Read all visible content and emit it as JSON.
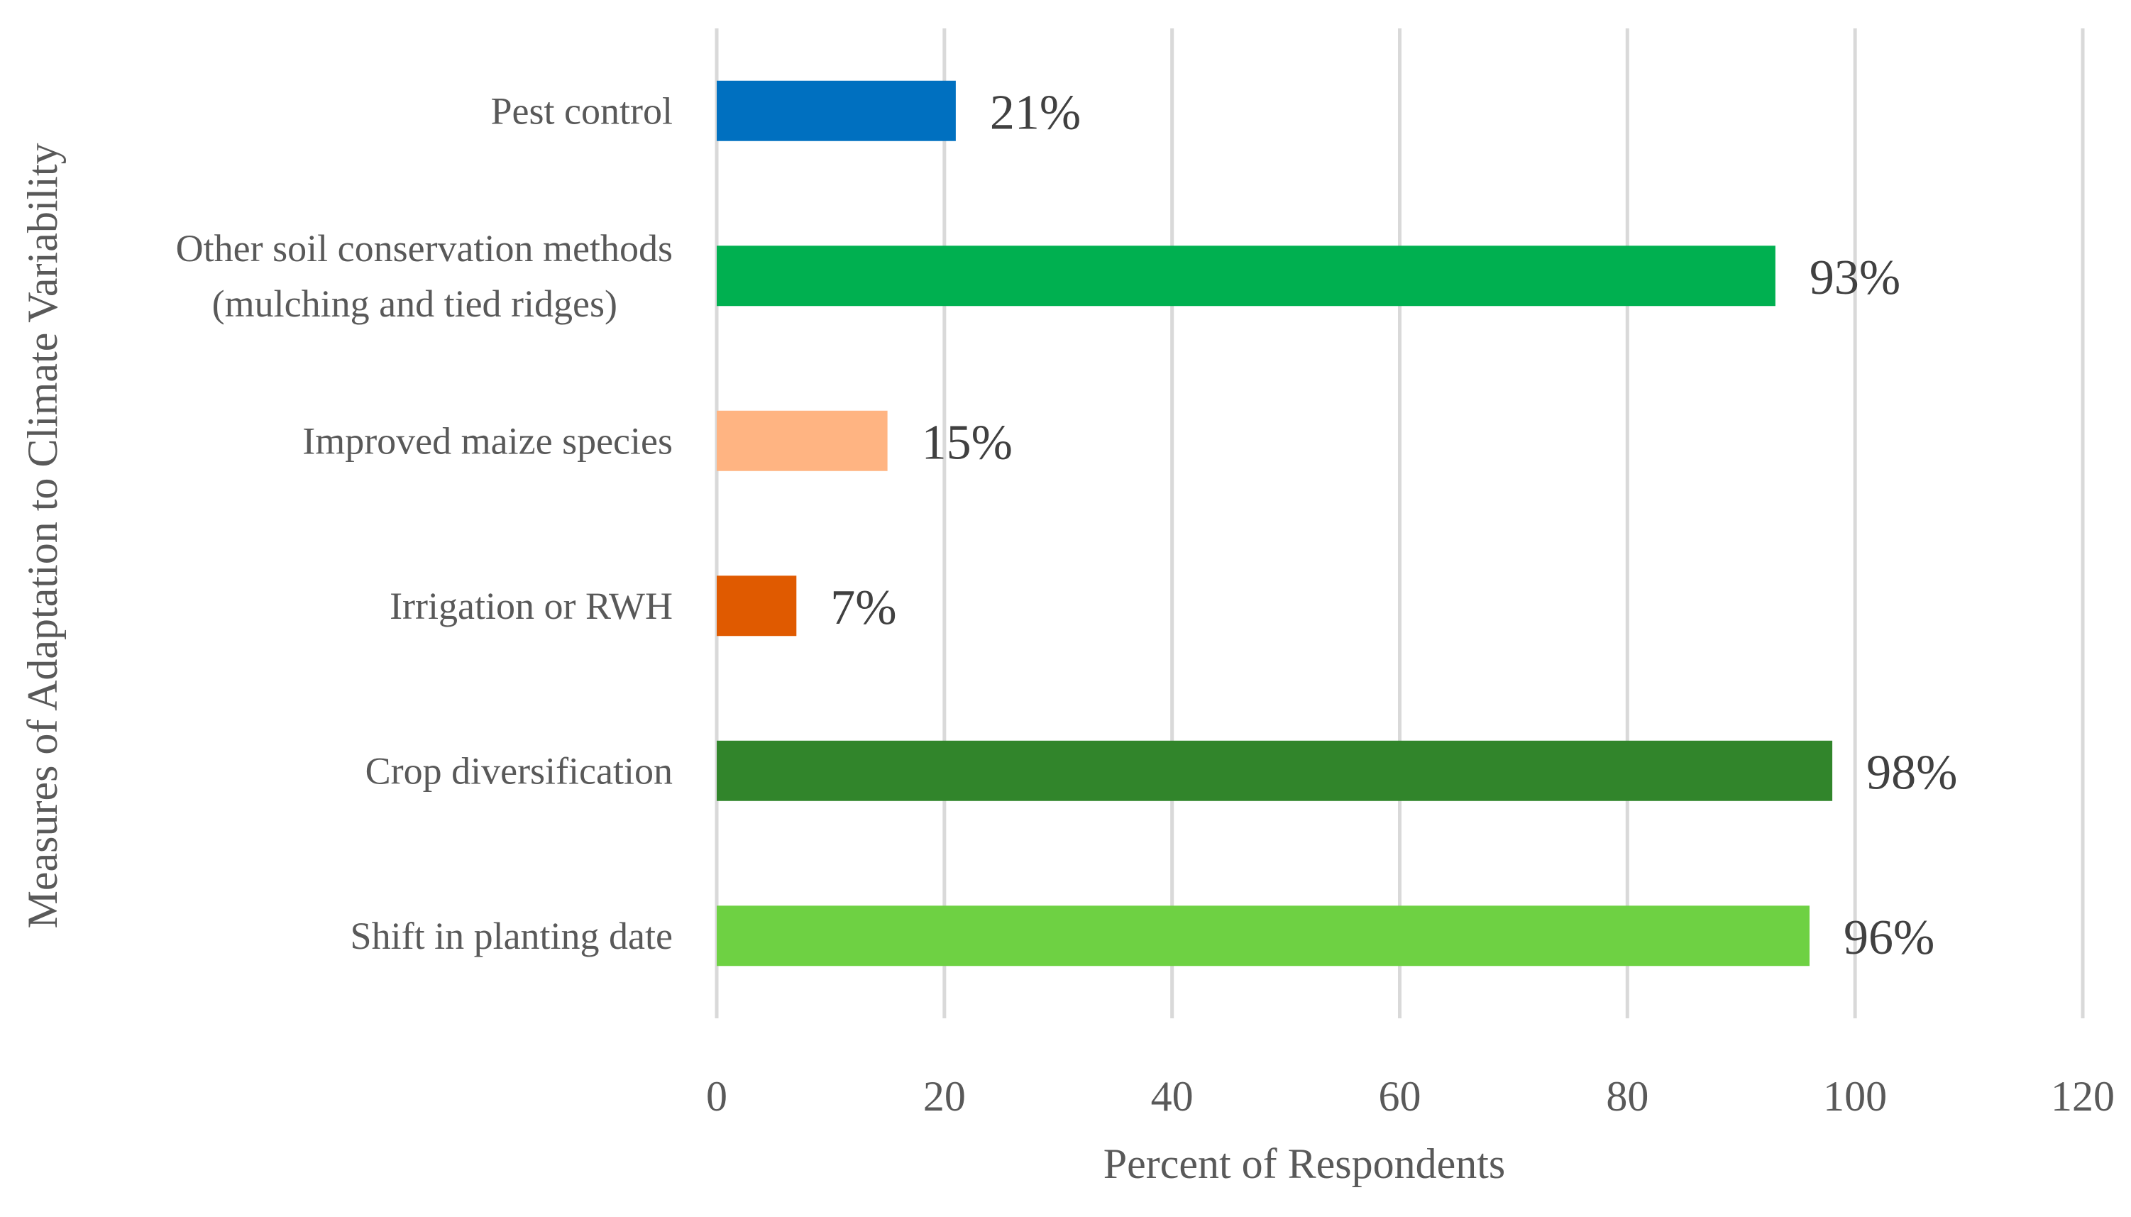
{
  "chart_data": {
    "type": "bar",
    "orientation": "horizontal",
    "title": "",
    "xlabel": "Percent of Respondents",
    "ylabel": "Measures of Adaptation to Climate Variability",
    "xlim": [
      0,
      120
    ],
    "xticks": [
      0,
      20,
      40,
      60,
      80,
      100,
      120
    ],
    "grid": "vertical",
    "legend": "none",
    "categories": [
      {
        "lines": [
          "Pest control"
        ],
        "value": 21,
        "label": "21%",
        "color": "#0070c0"
      },
      {
        "lines": [
          "Other soil conservation methods",
          "(mulching and tied ridges)"
        ],
        "value": 93,
        "label": "93%",
        "color": "#00b050"
      },
      {
        "lines": [
          "Improved maize species"
        ],
        "value": 15,
        "label": "15%",
        "color": "#ffb482"
      },
      {
        "lines": [
          "Irrigation or RWH"
        ],
        "value": 7,
        "label": "7%",
        "color": "#e05a00"
      },
      {
        "lines": [
          "Crop diversification"
        ],
        "value": 98,
        "label": "98%",
        "color": "#31852b"
      },
      {
        "lines": [
          "Shift in planting date"
        ],
        "value": 96,
        "label": "96%",
        "color": "#6ed143"
      }
    ]
  }
}
